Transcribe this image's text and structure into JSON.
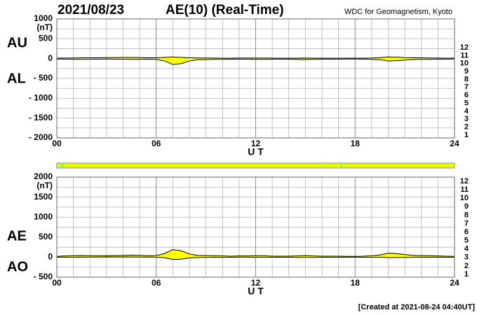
{
  "header": {
    "date": "2021/08/23",
    "title": "AE(10) (Real-Time)",
    "source": "WDC for Geomagnetism, Kyoto",
    "footer": "[Created at 2021-08-24 04:40UT]"
  },
  "station_counts": [
    12,
    11,
    10,
    9,
    8,
    7,
    6,
    5,
    4,
    3,
    2,
    1
  ],
  "station_colors": [
    "#ff1493",
    "#e8000b",
    "#ff9900",
    "#ffff00",
    "#99ff33",
    "#33ccff",
    "#0066ff",
    "#3300cc",
    "#cc00cc",
    "#000000",
    "#666666",
    "#cccccc"
  ],
  "chart_data": [
    {
      "type": "area",
      "ylabel": "(nT)",
      "xlabel": "U T",
      "fill": "#ffff00",
      "xlim": [
        0,
        24
      ],
      "xticks": [
        {
          "value": 0,
          "label": "00"
        },
        {
          "value": 6,
          "label": "06"
        },
        12,
        18,
        24
      ],
      "xgrid": [
        1,
        2,
        3,
        4,
        5,
        6,
        7,
        8,
        9,
        10,
        11,
        12,
        13,
        14,
        15,
        16,
        17,
        18,
        19,
        20,
        21,
        22,
        23
      ],
      "ylim": [
        -2000,
        1000
      ],
      "yticks": [
        1000,
        500,
        0,
        {
          "value": -500,
          "label": "- 500"
        },
        {
          "value": -1000,
          "label": "- 1000"
        },
        {
          "value": -1500,
          "label": "- 1500"
        },
        {
          "value": -2000,
          "label": "- 2000"
        }
      ],
      "ygrid": [
        750,
        250,
        -250,
        -750,
        -1250,
        -1750
      ],
      "x": [
        0,
        0.5,
        1,
        1.5,
        2,
        2.5,
        3,
        3.5,
        4,
        4.5,
        5,
        5.5,
        6,
        6.5,
        7,
        7.5,
        8,
        8.5,
        9,
        9.5,
        10,
        10.5,
        11,
        11.5,
        12,
        12.5,
        13,
        13.5,
        14,
        14.5,
        15,
        15.5,
        16,
        16.5,
        17,
        17.5,
        18,
        18.5,
        19,
        19.5,
        20,
        20.5,
        21,
        21.5,
        22,
        22.5,
        23,
        23.5,
        24
      ],
      "series": [
        {
          "name": "AU",
          "color": "#000000",
          "values": [
            10,
            15,
            15,
            20,
            20,
            20,
            25,
            25,
            30,
            30,
            25,
            20,
            20,
            30,
            40,
            30,
            20,
            15,
            15,
            15,
            10,
            10,
            15,
            15,
            15,
            15,
            10,
            10,
            10,
            10,
            15,
            10,
            10,
            10,
            10,
            10,
            10,
            10,
            15,
            25,
            40,
            35,
            25,
            20,
            20,
            15,
            15,
            10,
            10
          ]
        },
        {
          "name": "AL",
          "color": "#000000",
          "values": [
            -10,
            -15,
            -20,
            -20,
            -15,
            -15,
            -10,
            -15,
            -15,
            -20,
            -20,
            -15,
            -20,
            -60,
            -150,
            -130,
            -60,
            -30,
            -25,
            -20,
            -20,
            -15,
            -15,
            -15,
            -20,
            -20,
            -15,
            -15,
            -15,
            -20,
            -25,
            -20,
            -15,
            -15,
            -15,
            -10,
            -10,
            -15,
            -20,
            -30,
            -60,
            -55,
            -40,
            -25,
            -20,
            -20,
            -15,
            -15,
            -10
          ]
        }
      ]
    },
    {
      "type": "area",
      "ylabel": "(nT)",
      "xlabel": "U T",
      "fill": "#ffff00",
      "xlim": [
        0,
        24
      ],
      "xticks": [
        {
          "value": 0,
          "label": "00"
        },
        {
          "value": 6,
          "label": "06"
        },
        12,
        18,
        24
      ],
      "xgrid": [
        1,
        2,
        3,
        4,
        5,
        6,
        7,
        8,
        9,
        10,
        11,
        12,
        13,
        14,
        15,
        16,
        17,
        18,
        19,
        20,
        21,
        22,
        23
      ],
      "ylim": [
        -500,
        2000
      ],
      "yticks": [
        2000,
        1500,
        1000,
        500,
        0,
        {
          "value": -500,
          "label": "- 500"
        }
      ],
      "ygrid": [
        1750,
        1250,
        750,
        250,
        -250
      ],
      "x": [
        0,
        0.5,
        1,
        1.5,
        2,
        2.5,
        3,
        3.5,
        4,
        4.5,
        5,
        5.5,
        6,
        6.5,
        7,
        7.5,
        8,
        8.5,
        9,
        9.5,
        10,
        10.5,
        11,
        11.5,
        12,
        12.5,
        13,
        13.5,
        14,
        14.5,
        15,
        15.5,
        16,
        16.5,
        17,
        17.5,
        18,
        18.5,
        19,
        19.5,
        20,
        20.5,
        21,
        21.5,
        22,
        22.5,
        23,
        23.5,
        24
      ],
      "series": [
        {
          "name": "AE",
          "color": "#000000",
          "values": [
            20,
            30,
            35,
            40,
            35,
            35,
            35,
            40,
            45,
            50,
            45,
            35,
            40,
            90,
            190,
            160,
            80,
            45,
            40,
            35,
            30,
            25,
            30,
            30,
            35,
            35,
            25,
            25,
            25,
            30,
            40,
            30,
            25,
            25,
            25,
            20,
            20,
            25,
            35,
            55,
            100,
            90,
            65,
            45,
            40,
            35,
            30,
            25,
            20
          ]
        },
        {
          "name": "AO",
          "color": "#000000",
          "values": [
            0,
            0,
            -2.5,
            0,
            2.5,
            2.5,
            7.5,
            5,
            7.5,
            5,
            2.5,
            2.5,
            0,
            -15,
            -55,
            -50,
            -20,
            -7.5,
            -5,
            -2.5,
            -5,
            -2.5,
            0,
            0,
            -2.5,
            -2.5,
            -2.5,
            -2.5,
            -2.5,
            -5,
            -5,
            -5,
            -2.5,
            -2.5,
            -2.5,
            0,
            0,
            -2.5,
            -2.5,
            -2.5,
            -10,
            -10,
            -7.5,
            -2.5,
            0,
            -2.5,
            0,
            -2.5,
            0
          ]
        }
      ]
    }
  ]
}
